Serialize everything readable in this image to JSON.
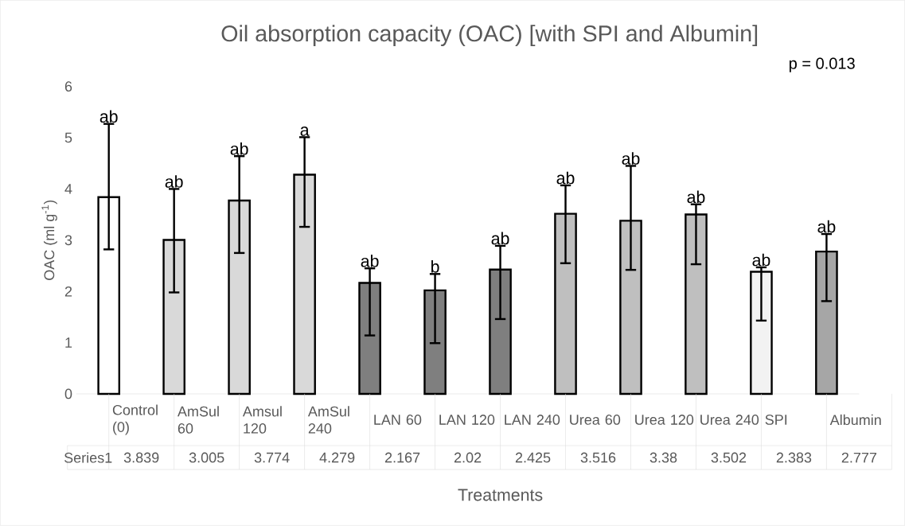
{
  "chart_data": {
    "type": "bar",
    "title": "Oil absorption capacity (OAC) [with SPI and Albumin]",
    "xlabel": "Treatments",
    "ylabel": "OAC (ml g$^{-1}$)",
    "categories": [
      "Control (0)",
      "AmSul 60",
      "Amsul 120",
      "AmSul 240",
      "LAN 60",
      "LAN 120",
      "LAN 240",
      "Urea 60",
      "Urea 120",
      "Urea 240",
      "SPI",
      "Albumin"
    ],
    "series": [
      {
        "name": "Series1",
        "color": "#000000",
        "colors": [
          "#ffffff",
          "#d9d9d9",
          "#d9d9d9",
          "#d9d9d9",
          "#7f7f7f",
          "#7f7f7f",
          "#7f7f7f",
          "#bfbfbf",
          "#bfbfbf",
          "#bfbfbf",
          "#f2f2f2",
          "#a6a6a6"
        ],
        "values": [
          3.839,
          3.005,
          3.774,
          4.279,
          2.167,
          2.02,
          2.425,
          3.516,
          3.38,
          3.502,
          2.383,
          2.777
        ],
        "errors": [
          [
            2.82,
            5.27
          ],
          [
            1.98,
            4.0
          ],
          [
            2.75,
            4.64
          ],
          [
            3.26,
            5.01
          ],
          [
            1.14,
            2.45
          ],
          [
            0.99,
            2.34
          ],
          [
            1.46,
            2.89
          ],
          [
            2.55,
            4.07
          ],
          [
            2.42,
            4.45
          ],
          [
            2.53,
            3.7
          ],
          [
            1.43,
            2.47
          ],
          [
            1.81,
            3.12
          ]
        ]
      }
    ],
    "data_labels": true,
    "ylim": [
      0,
      6
    ],
    "yticks": [
      0,
      1,
      2,
      3,
      4,
      5,
      6
    ],
    "annotations": [
      "ab",
      "ab",
      "ab",
      "a",
      "ab",
      "b",
      "ab",
      "ab",
      "ab",
      "ab",
      "ab",
      "ab",
      "p = 0.013"
    ]
  }
}
